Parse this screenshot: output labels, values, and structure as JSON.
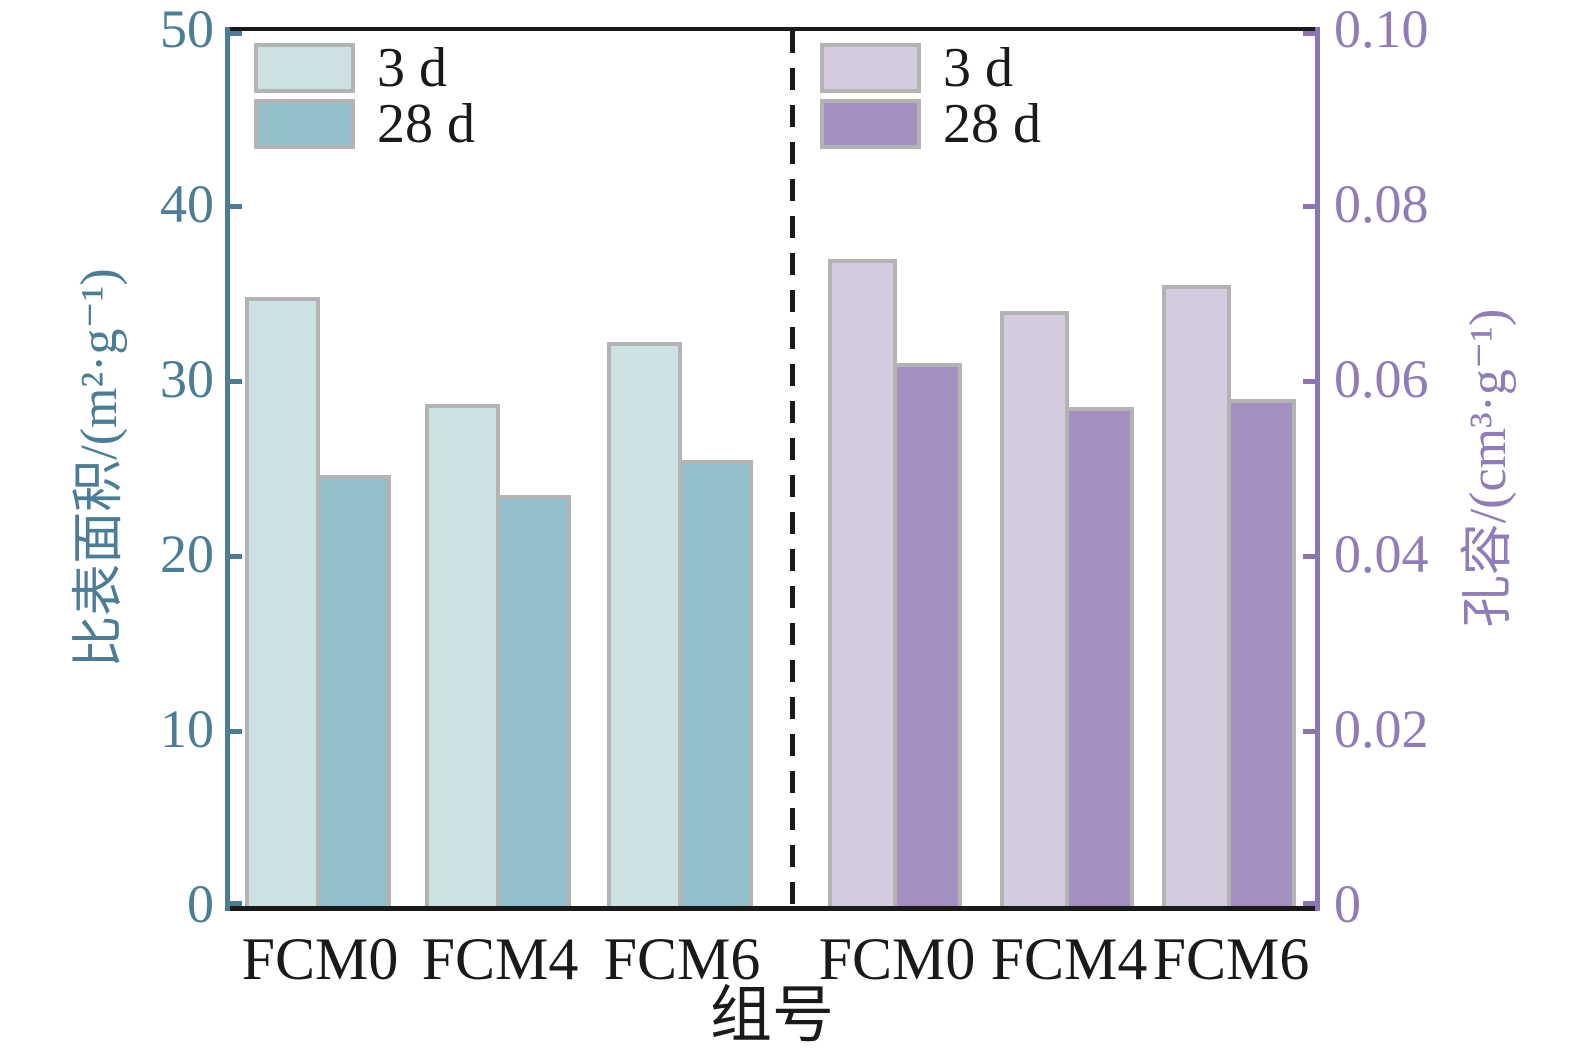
{
  "figure": {
    "xaxis_title": "组号",
    "colors": {
      "left_axis": "#4b7d96",
      "right_axis": "#8a74b2",
      "frame": "#1a1a1a",
      "bar_border": "#b3b3b3"
    }
  },
  "chart_data": {
    "type": "bar",
    "title": "",
    "xlabel": "组号",
    "grid": false,
    "divider": "dashed vertical line between the two panels",
    "panels": [
      {
        "side": "left",
        "ylabel": "比表面积/(m²·g⁻¹)",
        "ylim": [
          0,
          50
        ],
        "ytick_labels": [
          "0",
          "10",
          "20",
          "30",
          "40",
          "50"
        ],
        "ytick_values": [
          0,
          10,
          20,
          30,
          40,
          50
        ],
        "axis_color": "#4b7d96",
        "categories": [
          "FCM0",
          "FCM4",
          "FCM6"
        ],
        "legend_position": "upper left",
        "series": [
          {
            "name": "3 d",
            "color": "#cde1e3",
            "values": [
              34.8,
              28.7,
              32.2
            ]
          },
          {
            "name": "28 d",
            "color": "#93bfca",
            "values": [
              24.6,
              23.5,
              25.5
            ]
          }
        ]
      },
      {
        "side": "right",
        "ylabel": "孔容/(cm³·g⁻¹)",
        "ylim": [
          0,
          0.1
        ],
        "ytick_labels": [
          "0",
          "0.02",
          "0.04",
          "0.06",
          "0.08",
          "0.10"
        ],
        "ytick_values": [
          0,
          0.02,
          0.04,
          0.06,
          0.08,
          0.1
        ],
        "axis_color": "#8a74b2",
        "categories": [
          "FCM0",
          "FCM4",
          "FCM6"
        ],
        "legend_position": "upper left of right panel",
        "series": [
          {
            "name": "3 d",
            "color": "#d4cbdf",
            "values": [
              0.074,
              0.068,
              0.071
            ]
          },
          {
            "name": "28 d",
            "color": "#a390c1",
            "values": [
              0.062,
              0.057,
              0.058
            ]
          }
        ]
      }
    ]
  }
}
